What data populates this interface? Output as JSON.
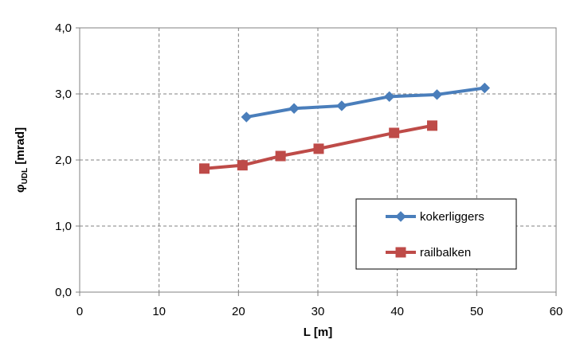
{
  "chart_data": {
    "type": "line",
    "title": "",
    "xlabel": "L  [m]",
    "ylabel": "φUDL  [mrad]",
    "ylabel_main": "φ",
    "ylabel_sub": "UDL",
    "ylabel_unit": "  [mrad]",
    "xlim": [
      0,
      60
    ],
    "ylim": [
      0,
      4
    ],
    "xticks": [
      0,
      10,
      20,
      30,
      40,
      50,
      60
    ],
    "xtick_labels": [
      "0",
      "10",
      "20",
      "30",
      "40",
      "50",
      "60"
    ],
    "yticks": [
      0,
      1,
      2,
      3,
      4
    ],
    "ytick_labels": [
      "0,0",
      "1,0",
      "2,0",
      "3,0",
      "4,0"
    ],
    "grid": true,
    "grid_style": "dashed",
    "legend_position": "lower-right",
    "series": [
      {
        "name": "kokerliggers",
        "color": "#4A7EBB",
        "marker": "diamond",
        "x": [
          21,
          27,
          33,
          39,
          45,
          51
        ],
        "y": [
          2.65,
          2.78,
          2.82,
          2.96,
          2.99,
          3.09
        ]
      },
      {
        "name": "railbalken",
        "color": "#BE4B48",
        "marker": "square",
        "x": [
          15.7,
          20.5,
          25.3,
          30.1,
          39.6,
          44.4
        ],
        "y": [
          1.87,
          1.92,
          2.06,
          2.17,
          2.41,
          2.52
        ]
      }
    ]
  }
}
